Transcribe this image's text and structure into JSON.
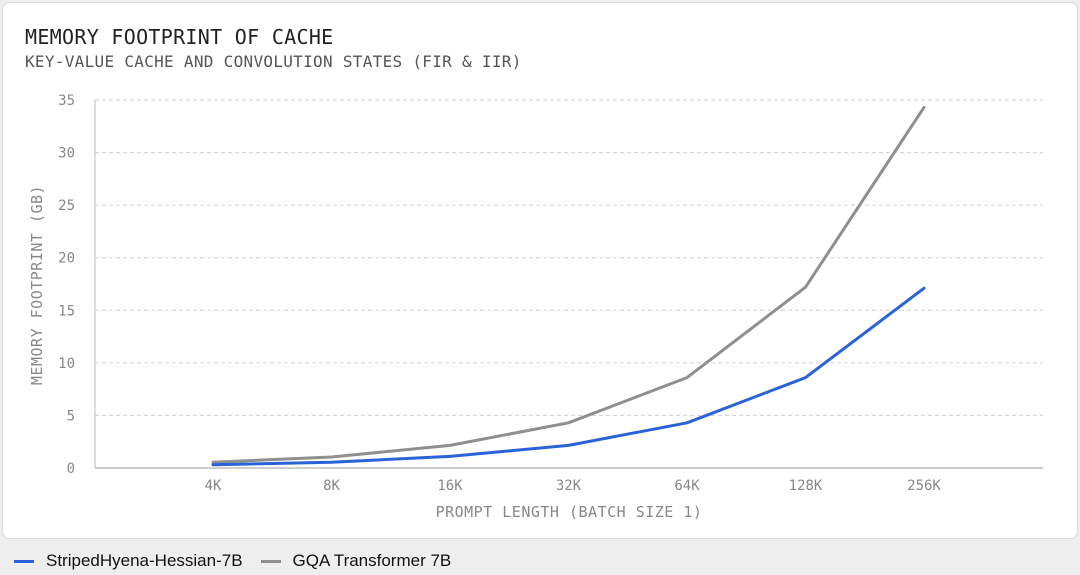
{
  "header": {
    "title": "MEMORY FOOTPRINT OF CACHE",
    "subtitle": "KEY-VALUE CACHE AND CONVOLUTION STATES (FIR & IIR)"
  },
  "chart_data": {
    "type": "line",
    "title": "MEMORY FOOTPRINT OF CACHE",
    "subtitle": "KEY-VALUE CACHE AND CONVOLUTION STATES (FIR & IIR)",
    "xlabel": "PROMPT LENGTH (BATCH SIZE 1)",
    "ylabel": "MEMORY FOOTPRINT (GB)",
    "categories": [
      "4K",
      "8K",
      "16K",
      "32K",
      "64K",
      "128K",
      "256K"
    ],
    "ylim": [
      0,
      35
    ],
    "yticks": [
      0,
      5,
      10,
      15,
      20,
      25,
      30,
      35
    ],
    "grid": true,
    "legend_position": "bottom-left",
    "series": [
      {
        "name": "StripedHyena-Hessian-7B",
        "color": "#2a62d8",
        "values": [
          0.3,
          0.55,
          1.1,
          2.15,
          4.3,
          8.6,
          17.1
        ]
      },
      {
        "name": "GQA Transformer 7B",
        "color": "#8f8f8f",
        "values": [
          0.55,
          1.05,
          2.15,
          4.3,
          8.6,
          17.2,
          34.3
        ]
      }
    ]
  }
}
